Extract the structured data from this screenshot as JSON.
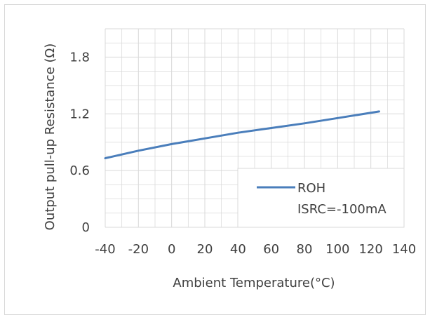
{
  "chart_data": {
    "type": "line",
    "title": "",
    "xlabel": "Ambient Temperature(°C)",
    "ylabel": "Output pull-up Resistance (Ω)",
    "xlim": [
      -40,
      140
    ],
    "ylim": [
      0,
      2.1
    ],
    "x_ticks": [
      -40,
      -20,
      0,
      20,
      40,
      60,
      80,
      100,
      120,
      140
    ],
    "x_tick_labels": [
      "-40",
      "-20",
      "0",
      "20",
      "40",
      "60",
      "80",
      "100",
      "120",
      "140"
    ],
    "y_ticks": [
      0,
      0.6,
      1.2,
      1.8
    ],
    "y_tick_labels": [
      "0",
      "0.6",
      "1.2",
      "1.8"
    ],
    "grid": "major and minor",
    "legend_position": "bottom-right",
    "legend_lines": [
      "ROH",
      "ISRC=-100mA"
    ],
    "series": [
      {
        "name": "ROH",
        "color": "#4a7ebb",
        "x": [
          -40,
          -20,
          0,
          20,
          40,
          60,
          80,
          100,
          125
        ],
        "y": [
          0.73,
          0.81,
          0.88,
          0.94,
          1.0,
          1.05,
          1.1,
          1.155,
          1.225
        ]
      }
    ]
  }
}
